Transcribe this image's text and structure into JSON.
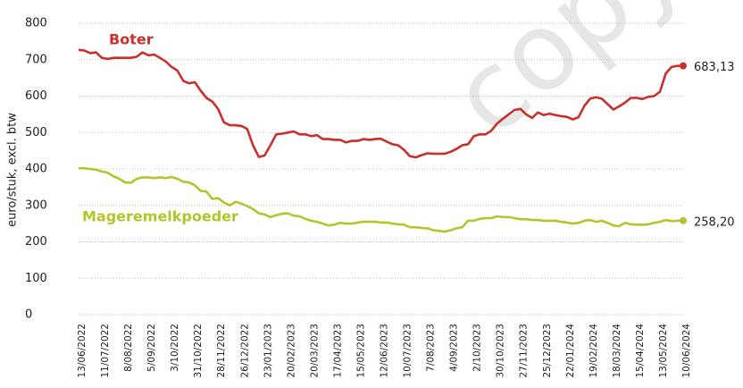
{
  "chart_data": {
    "type": "line",
    "y_label": "euro/stuk, excl. btw",
    "watermark": "copy",
    "categories": [
      "13/06/2022",
      null,
      null,
      null,
      "11/07/2022",
      null,
      null,
      null,
      "8/08/2022",
      null,
      null,
      null,
      "5/09/2022",
      null,
      null,
      null,
      "3/10/2022",
      null,
      null,
      null,
      "31/10/2022",
      null,
      null,
      null,
      "28/11/2022",
      null,
      null,
      null,
      "26/12/2022",
      null,
      null,
      null,
      "23/01/2023",
      null,
      null,
      null,
      "20/02/2023",
      null,
      null,
      null,
      "20/03/2023",
      null,
      null,
      null,
      "17/04/2023",
      null,
      null,
      null,
      "15/05/2023",
      null,
      null,
      null,
      "12/06/2023",
      null,
      null,
      null,
      "10/07/2023",
      null,
      null,
      null,
      "7/08/2023",
      null,
      null,
      null,
      "4/09/2023",
      null,
      null,
      null,
      "2/10/2023",
      null,
      null,
      null,
      "30/10/2023",
      null,
      null,
      null,
      "27/11/2023",
      null,
      null,
      null,
      "25/12/2023",
      null,
      null,
      null,
      "22/01/2024",
      null,
      null,
      null,
      "19/02/2024",
      null,
      null,
      null,
      "18/03/2024",
      null,
      null,
      null,
      "15/04/2024",
      null,
      null,
      null,
      "13/05/2024",
      null,
      null,
      null,
      "10/06/2024"
    ],
    "series": [
      {
        "name": "Boter",
        "color": "#c8302c",
        "values": [
          727,
          725,
          718,
          720,
          705,
          702,
          705,
          705,
          705,
          705,
          708,
          720,
          712,
          714,
          705,
          695,
          680,
          670,
          642,
          635,
          638,
          615,
          595,
          585,
          565,
          528,
          520,
          520,
          518,
          510,
          465,
          433,
          437,
          465,
          495,
          497,
          500,
          503,
          495,
          495,
          490,
          493,
          482,
          482,
          480,
          480,
          473,
          477,
          477,
          482,
          480,
          482,
          483,
          475,
          468,
          465,
          452,
          435,
          432,
          438,
          443,
          442,
          442,
          442,
          447,
          455,
          465,
          468,
          490,
          495,
          495,
          505,
          525,
          538,
          550,
          562,
          565,
          550,
          540,
          555,
          548,
          552,
          548,
          545,
          543,
          536,
          542,
          573,
          593,
          597,
          593,
          578,
          563,
          572,
          582,
          595,
          595,
          592,
          598,
          600,
          612,
          662,
          680,
          683,
          683.13
        ],
        "value_labels": [
          null,
          null,
          null,
          null,
          null,
          null,
          null,
          null,
          null,
          null,
          null,
          null,
          null,
          null,
          null,
          null,
          null,
          null,
          null,
          null,
          null,
          null,
          null,
          null,
          null,
          null,
          null,
          null,
          null,
          null,
          null,
          null,
          null,
          null,
          null,
          null,
          null,
          null,
          null,
          null,
          null,
          null,
          null,
          null,
          null,
          null,
          null,
          null,
          null,
          null,
          null,
          null,
          null,
          null,
          null,
          null,
          null,
          null,
          null,
          null,
          null,
          null,
          null,
          null,
          null,
          null,
          null,
          null,
          null,
          null,
          null,
          null,
          null,
          null,
          null,
          null,
          null,
          null,
          null,
          null,
          null,
          null,
          null,
          null,
          null,
          null,
          null,
          null,
          null,
          null,
          null,
          null,
          null,
          null,
          null,
          null,
          null,
          null,
          null,
          null,
          null,
          null,
          null,
          null,
          "683,13"
        ]
      },
      {
        "name": "Mageremelkpoeder",
        "color": "#b5c42b",
        "values": [
          402,
          402,
          400,
          398,
          393,
          390,
          380,
          373,
          363,
          362,
          373,
          377,
          377,
          375,
          377,
          375,
          378,
          373,
          365,
          363,
          355,
          340,
          338,
          318,
          320,
          308,
          300,
          310,
          305,
          298,
          290,
          278,
          275,
          268,
          273,
          277,
          278,
          272,
          270,
          263,
          258,
          255,
          250,
          245,
          247,
          252,
          250,
          250,
          253,
          255,
          255,
          255,
          253,
          253,
          250,
          248,
          247,
          240,
          240,
          238,
          237,
          232,
          230,
          228,
          232,
          237,
          240,
          258,
          258,
          263,
          265,
          265,
          270,
          268,
          268,
          265,
          262,
          262,
          260,
          260,
          258,
          258,
          258,
          255,
          253,
          250,
          252,
          258,
          260,
          255,
          258,
          252,
          245,
          243,
          252,
          248,
          247,
          247,
          248,
          252,
          255,
          260,
          257,
          258,
          258.2
        ],
        "value_labels": [
          null,
          null,
          null,
          null,
          null,
          null,
          null,
          null,
          null,
          null,
          null,
          null,
          null,
          null,
          null,
          null,
          null,
          null,
          null,
          null,
          null,
          null,
          null,
          null,
          null,
          null,
          null,
          null,
          null,
          null,
          null,
          null,
          null,
          null,
          null,
          null,
          null,
          null,
          null,
          null,
          null,
          null,
          null,
          null,
          null,
          null,
          null,
          null,
          null,
          null,
          null,
          null,
          null,
          null,
          null,
          null,
          null,
          null,
          null,
          null,
          null,
          null,
          null,
          null,
          null,
          null,
          null,
          null,
          null,
          null,
          null,
          null,
          null,
          null,
          null,
          null,
          null,
          null,
          null,
          null,
          null,
          null,
          null,
          null,
          null,
          null,
          null,
          null,
          null,
          null,
          null,
          null,
          null,
          null,
          null,
          null,
          null,
          null,
          null,
          null,
          null,
          null,
          null,
          null,
          "258,20"
        ]
      }
    ],
    "ylim": [
      0,
      800
    ],
    "yticks": [
      0,
      100,
      200,
      300,
      400,
      500,
      600,
      700,
      800
    ],
    "grid": true
  }
}
